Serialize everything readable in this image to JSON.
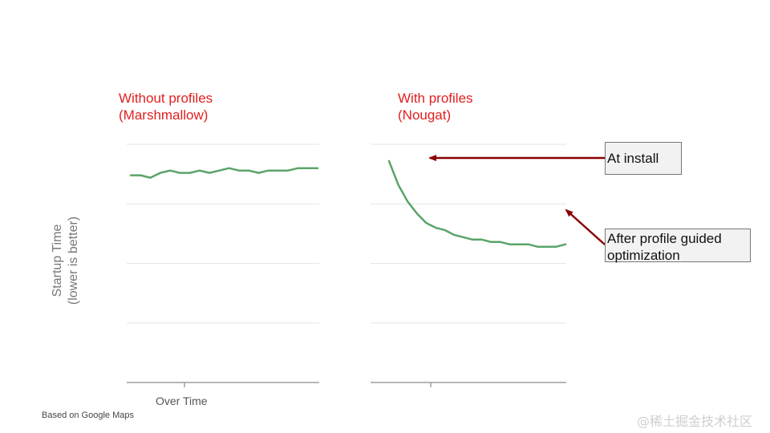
{
  "chart_data": [
    {
      "type": "line",
      "title_lines": [
        "Without profiles",
        "(Marshmallow)"
      ],
      "xlabel": "Over Time",
      "ylabel_lines": [
        "Startup Time",
        "(lower is better)"
      ],
      "series": [
        {
          "values": [
            0.87,
            0.87,
            0.86,
            0.88,
            0.89,
            0.88,
            0.88,
            0.89,
            0.88,
            0.89,
            0.9,
            0.89,
            0.89,
            0.88,
            0.89,
            0.89,
            0.89,
            0.9,
            0.9,
            0.9
          ]
        }
      ],
      "ylim": [
        0,
        1
      ],
      "grid": true,
      "line_color": "#5aa469"
    },
    {
      "type": "line",
      "title_lines": [
        "With profiles",
        "(Nougat)"
      ],
      "series": [
        {
          "values": [
            0.93,
            0.83,
            0.76,
            0.71,
            0.67,
            0.65,
            0.64,
            0.62,
            0.61,
            0.6,
            0.6,
            0.59,
            0.59,
            0.58,
            0.58,
            0.58,
            0.57,
            0.57,
            0.57,
            0.58
          ]
        }
      ],
      "ylim": [
        0,
        1
      ],
      "grid": true,
      "line_color": "#5aa469"
    }
  ],
  "annotations": {
    "at_install": "At install",
    "pgo_lines": [
      "After profile guided",
      "optimization"
    ],
    "arrow_color": "#8b0000"
  },
  "footnote": "Based on Google Maps",
  "watermark": "@稀土掘金技术社区"
}
